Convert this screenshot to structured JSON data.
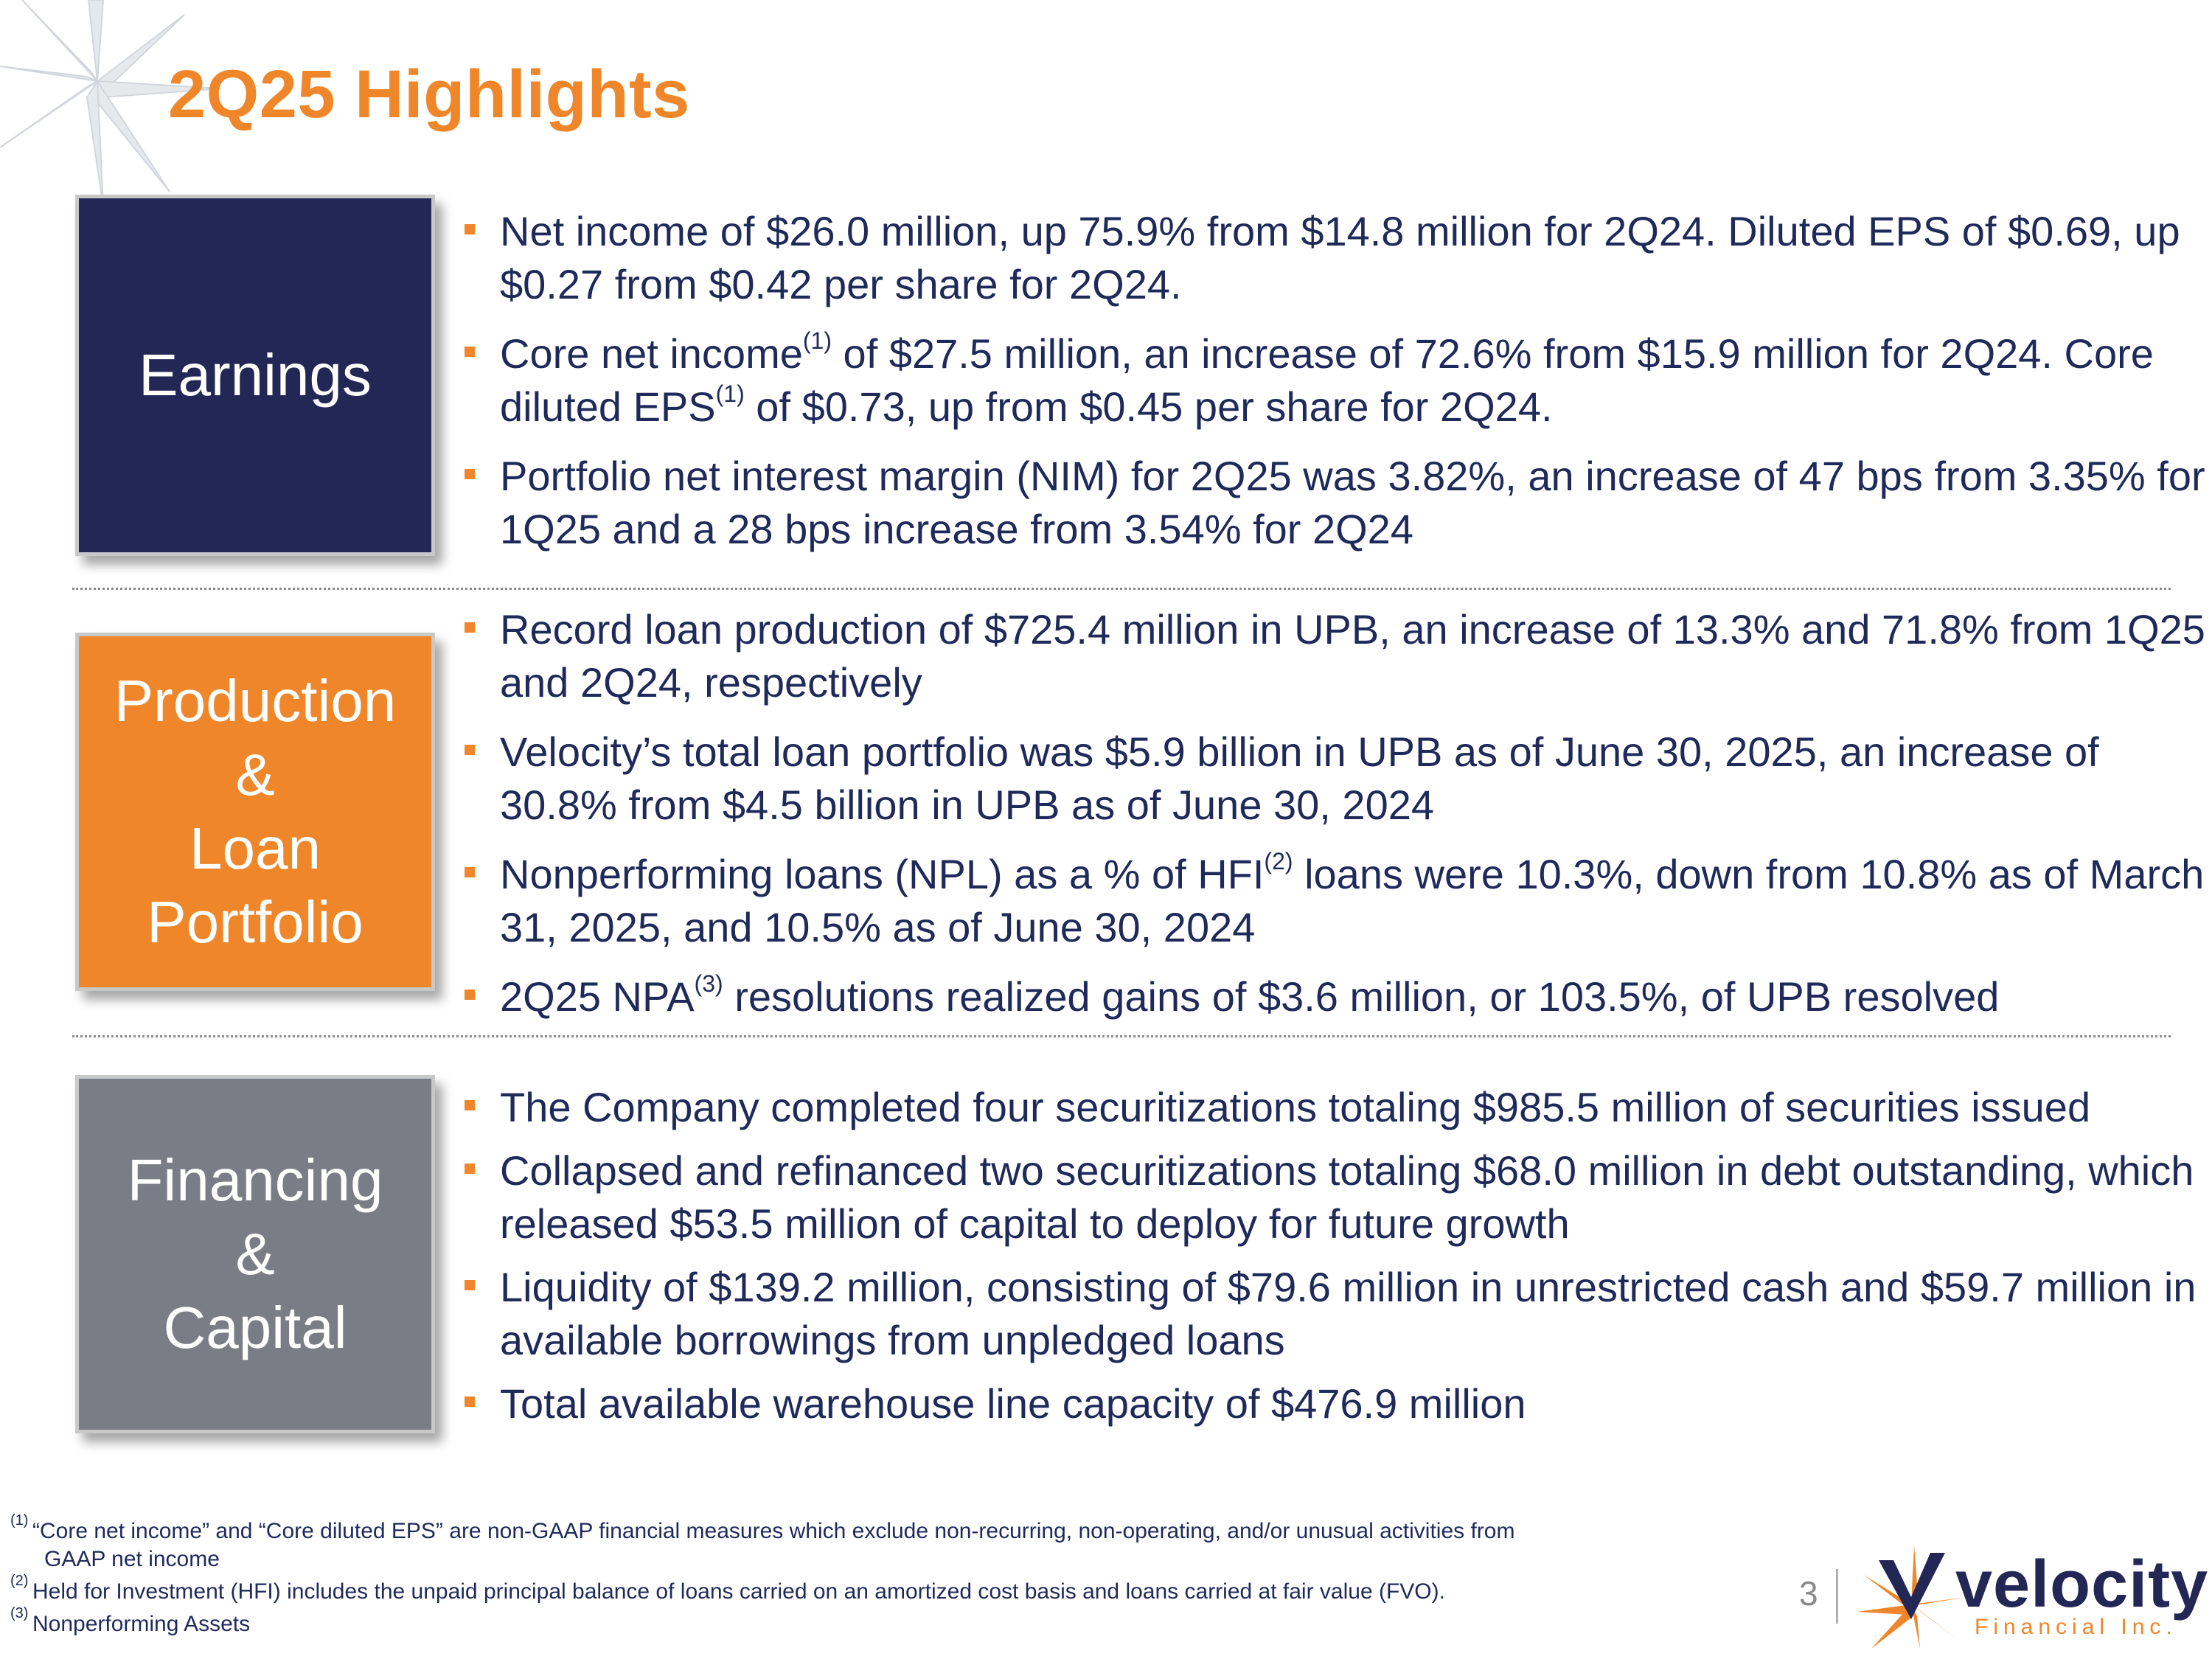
{
  "title": "2Q25 Highlights",
  "colors": {
    "accent": "#f0862a",
    "navy": "#222755",
    "gray_box": "#7b7d86",
    "text": "#1f2a5a"
  },
  "sections": {
    "earnings": {
      "label": "Earnings",
      "bullets": [
        {
          "text": "Net income of $26.0 million, up 75.9% from $14.8 million for 2Q24. Diluted EPS of $0.69, up $0.27 from $0.42 per share for 2Q24."
        },
        {
          "pre": "Core net income",
          "sup1": "(1)",
          "mid": " of $27.5 million, an increase of 72.6% from $15.9 million for 2Q24. Core diluted EPS",
          "sup2": "(1)",
          "post": " of $0.73, up from $0.45 per share for 2Q24."
        },
        {
          "text": "Portfolio net interest margin (NIM) for 2Q25 was 3.82%, an increase of 47 bps from 3.35% for 1Q25 and a 28 bps increase from 3.54% for 2Q24"
        }
      ]
    },
    "production": {
      "label_lines": [
        "Production",
        "&",
        "Loan",
        "Portfolio"
      ],
      "bullets": [
        {
          "text": "Record loan production of $725.4 million in UPB, an increase of 13.3% and 71.8% from 1Q25 and 2Q24, respectively"
        },
        {
          "text": "Velocity’s total loan portfolio was $5.9 billion in UPB as of June 30, 2025, an increase of 30.8% from $4.5 billion in UPB as of June 30, 2024"
        },
        {
          "pre": "Nonperforming loans (NPL) as a % of HFI",
          "sup": "(2)",
          "post": " loans were 10.3%, down from 10.8% as of March 31, 2025, and 10.5% as of June 30, 2024"
        },
        {
          "pre": "2Q25 NPA",
          "sup": "(3)",
          "post": " resolutions realized gains of $3.6 million, or 103.5%, of UPB resolved"
        }
      ]
    },
    "financing": {
      "label_lines": [
        "Financing",
        "&",
        "Capital"
      ],
      "bullets": [
        {
          "text": "The Company completed four securitizations totaling $985.5 million of securities issued"
        },
        {
          "text": "Collapsed and refinanced two securitizations totaling $68.0 million in debt outstanding, which released $53.5 million of capital to deploy for future growth"
        },
        {
          "text": "Liquidity of $139.2 million, consisting of $79.6 million in unrestricted cash and $59.7 million in available borrowings from unpledged loans"
        },
        {
          "text": "Total available warehouse line capacity of $476.9 million"
        }
      ]
    }
  },
  "footnotes": [
    {
      "mark": "(1)",
      "text": "“Core net income” and “Core diluted EPS” are non-GAAP financial measures which exclude non-recurring, non-operating, and/or unusual activities from",
      "cont": "GAAP net income"
    },
    {
      "mark": "(2)",
      "text": " Held for Investment (HFI) includes the unpaid principal balance of loans carried on an amortized cost basis and loans carried at fair value (FVO)."
    },
    {
      "mark": "(3)",
      "text": "Nonperforming Assets"
    }
  ],
  "page_number": "3",
  "logo": {
    "word": "velocity",
    "sub": "Financial Inc."
  }
}
